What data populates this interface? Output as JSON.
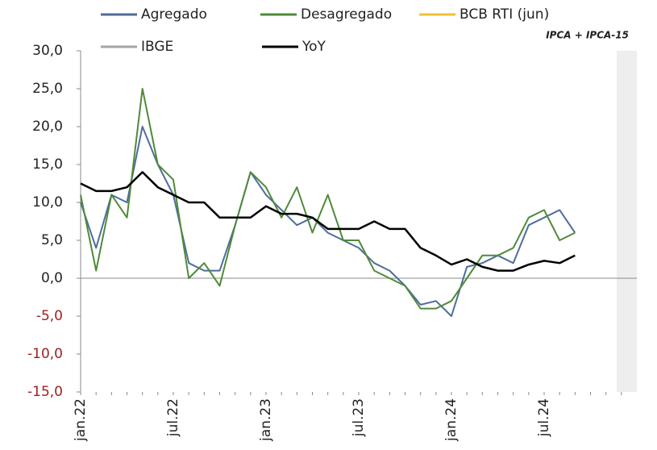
{
  "chart_data": {
    "type": "line",
    "annotation": "IPCA + IPCA-15",
    "categories": [
      "jan.22",
      null,
      null,
      null,
      null,
      null,
      "jul.22",
      null,
      null,
      null,
      null,
      null,
      "jan.23",
      null,
      null,
      null,
      null,
      null,
      "jul.23",
      null,
      null,
      null,
      null,
      null,
      "jan.24",
      null,
      null,
      null,
      null,
      null,
      "jul.24",
      null,
      null,
      null,
      null,
      null
    ],
    "series": [
      {
        "name": "Agregado",
        "color": "#4f6d9a",
        "values": [
          10,
          4,
          11,
          10,
          20,
          15,
          11,
          2,
          1,
          1,
          7,
          14,
          11,
          9,
          7,
          8,
          6,
          5,
          4,
          2,
          1,
          -1,
          -3.5,
          -3,
          -5,
          1.5,
          2,
          3,
          2,
          7,
          8,
          9,
          6,
          null,
          null,
          null
        ]
      },
      {
        "name": "Desagregado",
        "color": "#4f8a3a",
        "values": [
          11,
          1,
          11,
          8,
          25,
          15,
          13,
          0,
          2,
          -1,
          7,
          14,
          12,
          8,
          12,
          6,
          11,
          5,
          5,
          1,
          0,
          -1,
          -4,
          -4,
          -3,
          0,
          3,
          3,
          4,
          8,
          9,
          5,
          6,
          null,
          null,
          null
        ]
      },
      {
        "name": "BCB RTI (jun)",
        "color": "#f0c030",
        "values": [
          null,
          null,
          null,
          null,
          null,
          null,
          null,
          null,
          null,
          null,
          null,
          null,
          null,
          null,
          null,
          null,
          null,
          null,
          null,
          null,
          null,
          null,
          null,
          null,
          null,
          null,
          null,
          null,
          null,
          null,
          null,
          null,
          null,
          null,
          null,
          null
        ]
      },
      {
        "name": "IBGE",
        "color": "#a6a6a6",
        "values": [
          null,
          null,
          null,
          null,
          null,
          null,
          null,
          null,
          null,
          null,
          null,
          null,
          null,
          null,
          null,
          null,
          null,
          null,
          null,
          null,
          null,
          null,
          null,
          null,
          null,
          null,
          null,
          null,
          null,
          null,
          null,
          null,
          null,
          null,
          null,
          null
        ]
      },
      {
        "name": "YoY",
        "color": "#000000",
        "values": [
          12.5,
          11.5,
          11.5,
          12,
          14,
          12,
          11,
          10,
          10,
          8,
          8,
          8,
          9.5,
          8.5,
          8.5,
          8,
          6.5,
          6.5,
          6.5,
          7.5,
          6.5,
          6.5,
          4,
          3,
          1.8,
          2.5,
          1.5,
          1,
          1,
          1.8,
          2.3,
          2,
          3,
          null,
          null,
          null
        ]
      }
    ],
    "ylim": [
      -15,
      30
    ],
    "yticks": [
      {
        "value": -15,
        "label": "-15,0"
      },
      {
        "value": -10,
        "label": "-10,0"
      },
      {
        "value": -5,
        "label": "-5,0"
      },
      {
        "value": 0,
        "label": "0,0"
      },
      {
        "value": 5,
        "label": "5,0"
      },
      {
        "value": 10,
        "label": "10,0"
      },
      {
        "value": 15,
        "label": "15,0"
      },
      {
        "value": 20,
        "label": "20,0"
      },
      {
        "value": 25,
        "label": "25,0"
      },
      {
        "value": 30,
        "label": "30,0"
      }
    ],
    "grid": false
  }
}
